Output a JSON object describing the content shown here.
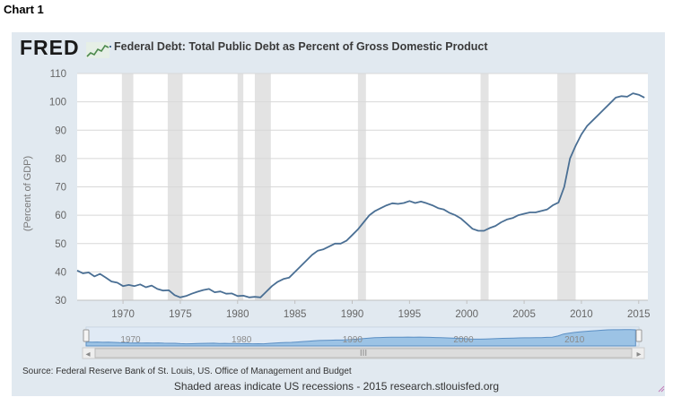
{
  "header_label": "Chart 1",
  "logo_text": "FRED",
  "legend_text": "Federal Debt: Total Public Debt as Percent of Gross Domestic Product",
  "source_text": "Source: Federal Reserve Bank of St. Louis, US. Office of Management and Budget",
  "note_text": "Shaded areas indicate US recessions - 2015 research.stlouisfed.org",
  "colors": {
    "line": "#4a6f94",
    "recession": "#e3e3e3",
    "panel": "#e1e9f0",
    "navigator_fill": "#9cc3e5",
    "navigator_line": "#5b8fc4"
  },
  "navigator": {
    "tick_labels": [
      "1970",
      "1980",
      "1990",
      "2000",
      "2010"
    ],
    "scroll_center_glyph": "III",
    "scroll_left_glyph": "◂",
    "scroll_right_glyph": "▸"
  },
  "chart_data": {
    "type": "line",
    "title": "Federal Debt: Total Public Debt as Percent of Gross Domestic Product",
    "ylabel": "(Percent of GDP)",
    "xlabel": "",
    "xlim": [
      1966.0,
      2015.8
    ],
    "ylim": [
      30,
      110
    ],
    "yticks": [
      30,
      40,
      50,
      60,
      70,
      80,
      90,
      100,
      110
    ],
    "xticks": [
      1970,
      1975,
      1980,
      1985,
      1990,
      1995,
      2000,
      2005,
      2010,
      2015
    ],
    "grid": true,
    "legend_position": "top-left",
    "recessions": [
      [
        1969.9,
        1970.9
      ],
      [
        1973.9,
        1975.2
      ],
      [
        1980.0,
        1980.5
      ],
      [
        1981.5,
        1982.9
      ],
      [
        1990.5,
        1991.2
      ],
      [
        2001.2,
        2001.9
      ],
      [
        2007.9,
        2009.5
      ]
    ],
    "series": [
      {
        "name": "Federal Debt: Total Public Debt as Percent of Gross Domestic Product",
        "x": [
          1966.0,
          1966.5,
          1967.0,
          1967.5,
          1968.0,
          1968.5,
          1969.0,
          1969.5,
          1970.0,
          1970.5,
          1971.0,
          1971.5,
          1972.0,
          1972.5,
          1973.0,
          1973.5,
          1974.0,
          1974.5,
          1975.0,
          1975.5,
          1976.0,
          1976.5,
          1977.0,
          1977.5,
          1978.0,
          1978.5,
          1979.0,
          1979.5,
          1980.0,
          1980.5,
          1981.0,
          1981.5,
          1982.0,
          1982.5,
          1983.0,
          1983.5,
          1984.0,
          1984.5,
          1985.0,
          1985.5,
          1986.0,
          1986.5,
          1987.0,
          1987.5,
          1988.0,
          1988.5,
          1989.0,
          1989.5,
          1990.0,
          1990.5,
          1991.0,
          1991.5,
          1992.0,
          1992.5,
          1993.0,
          1993.5,
          1994.0,
          1994.5,
          1995.0,
          1995.5,
          1996.0,
          1996.5,
          1997.0,
          1997.5,
          1998.0,
          1998.5,
          1999.0,
          1999.5,
          2000.0,
          2000.5,
          2001.0,
          2001.5,
          2002.0,
          2002.5,
          2003.0,
          2003.5,
          2004.0,
          2004.5,
          2005.0,
          2005.5,
          2006.0,
          2006.5,
          2007.0,
          2007.5,
          2008.0,
          2008.5,
          2009.0,
          2009.5,
          2010.0,
          2010.5,
          2011.0,
          2011.5,
          2012.0,
          2012.5,
          2013.0,
          2013.5,
          2014.0,
          2014.5,
          2015.0,
          2015.5
        ],
        "values": [
          40.5,
          39.5,
          39.8,
          38.4,
          39.3,
          38.0,
          36.6,
          36.2,
          35.0,
          35.4,
          35.0,
          35.6,
          34.6,
          35.2,
          34.0,
          33.4,
          33.5,
          31.8,
          31.0,
          31.5,
          32.3,
          33.0,
          33.6,
          34.0,
          32.8,
          33.1,
          32.3,
          32.4,
          31.5,
          31.6,
          31.0,
          31.2,
          31.0,
          33.0,
          35.0,
          36.5,
          37.5,
          38.0,
          40.0,
          42.0,
          44.0,
          46.0,
          47.5,
          48.0,
          49.0,
          50.0,
          50.0,
          51.0,
          53.0,
          55.0,
          57.5,
          60.0,
          61.5,
          62.5,
          63.5,
          64.2,
          64.0,
          64.3,
          65.0,
          64.3,
          64.8,
          64.2,
          63.5,
          62.5,
          62.0,
          60.8,
          60.0,
          58.8,
          57.0,
          55.2,
          54.5,
          54.5,
          55.5,
          56.2,
          57.5,
          58.5,
          59.0,
          60.0,
          60.5,
          61.0,
          61.0,
          61.5,
          62.0,
          63.5,
          64.5,
          70.0,
          80.0,
          84.5,
          88.5,
          91.5,
          93.5,
          95.5,
          97.5,
          99.5,
          101.5,
          102.0,
          101.8,
          103.0,
          102.5,
          101.5
        ]
      }
    ]
  }
}
